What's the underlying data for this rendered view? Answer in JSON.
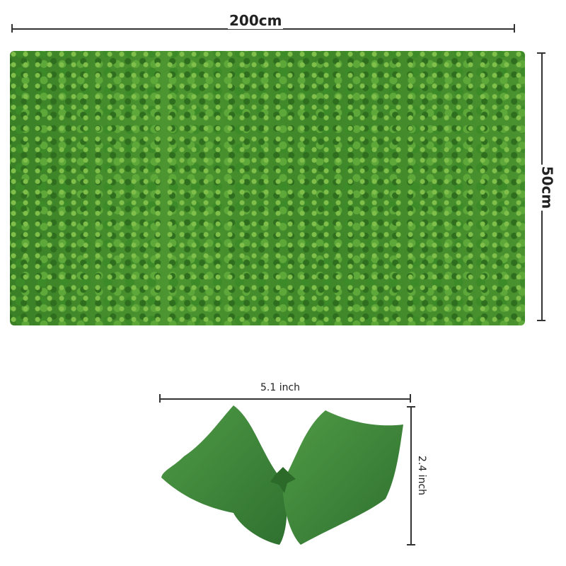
{
  "panel": {
    "width_label": "200cm",
    "height_label": "50cm",
    "color": "#4a922f"
  },
  "leaf": {
    "width_label": "5.1 inch",
    "height_label": "2.4 inch",
    "color": "#3e8a36"
  }
}
